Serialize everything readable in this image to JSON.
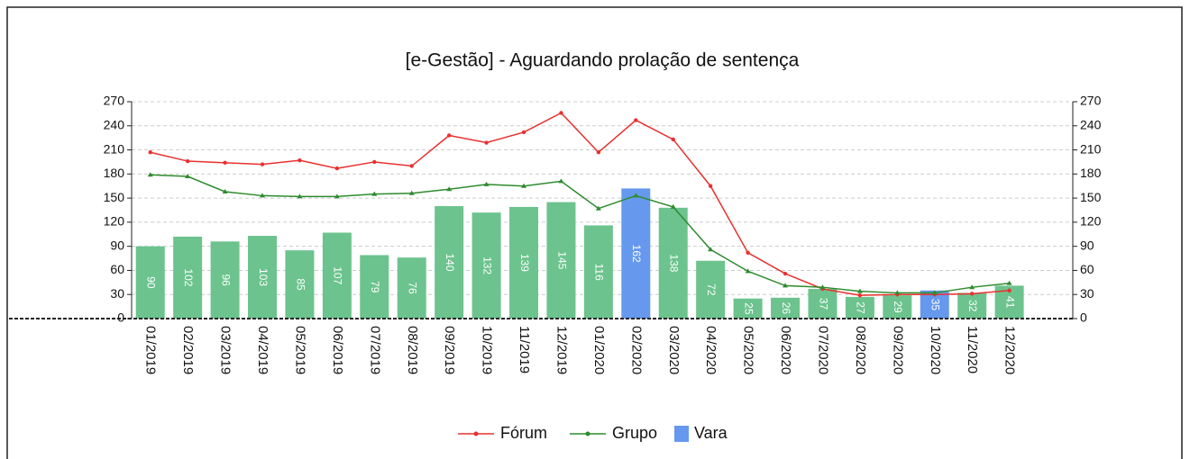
{
  "chart_data": {
    "type": "bar_line",
    "title": "[e-Gestão]  - Aguardando prolação de sentença",
    "categories": [
      "01/2019",
      "02/2019",
      "03/2019",
      "04/2019",
      "05/2019",
      "06/2019",
      "07/2019",
      "08/2019",
      "09/2019",
      "10/2019",
      "11/2019",
      "12/2019",
      "01/2020",
      "02/2020",
      "03/2020",
      "04/2020",
      "05/2020",
      "06/2020",
      "07/2020",
      "08/2020",
      "09/2020",
      "10/2020",
      "11/2020",
      "12/2020"
    ],
    "series": [
      {
        "name": "Fórum",
        "type": "line",
        "color": "#e8312f",
        "values": [
          207,
          196,
          194,
          192,
          197,
          187,
          195,
          190,
          228,
          219,
          232,
          256,
          207,
          247,
          223,
          165,
          82,
          56,
          37,
          29,
          30,
          30,
          31,
          35
        ]
      },
      {
        "name": "Grupo",
        "type": "line",
        "color": "#2e8b2e",
        "values": [
          179,
          177,
          158,
          153,
          152,
          152,
          155,
          156,
          161,
          167,
          165,
          171,
          137,
          153,
          139,
          86,
          59,
          41,
          39,
          34,
          32,
          32,
          39,
          44
        ]
      },
      {
        "name": "Vara",
        "type": "bar",
        "color": "#6699ee",
        "values": [
          90,
          102,
          96,
          103,
          85,
          107,
          79,
          76,
          140,
          132,
          139,
          145,
          116,
          162,
          138,
          72,
          25,
          26,
          37,
          27,
          29,
          35,
          32,
          41
        ],
        "bar_colors": [
          "#6cc38e",
          "#6cc38e",
          "#6cc38e",
          "#6cc38e",
          "#6cc38e",
          "#6cc38e",
          "#6cc38e",
          "#6cc38e",
          "#6cc38e",
          "#6cc38e",
          "#6cc38e",
          "#6cc38e",
          "#6cc38e",
          "#6699ee",
          "#6cc38e",
          "#6cc38e",
          "#6cc38e",
          "#6cc38e",
          "#6cc38e",
          "#6cc38e",
          "#6cc38e",
          "#6699ee",
          "#6cc38e",
          "#6cc38e"
        ]
      }
    ],
    "ylim": [
      0,
      270
    ],
    "yticks": [
      0,
      30,
      60,
      90,
      120,
      150,
      180,
      210,
      240,
      270
    ],
    "y2lim": [
      0,
      270
    ],
    "y2ticks": [
      0,
      30,
      60,
      90,
      120,
      150,
      180,
      210,
      240,
      270
    ],
    "grid": true,
    "legend": "bottom"
  }
}
